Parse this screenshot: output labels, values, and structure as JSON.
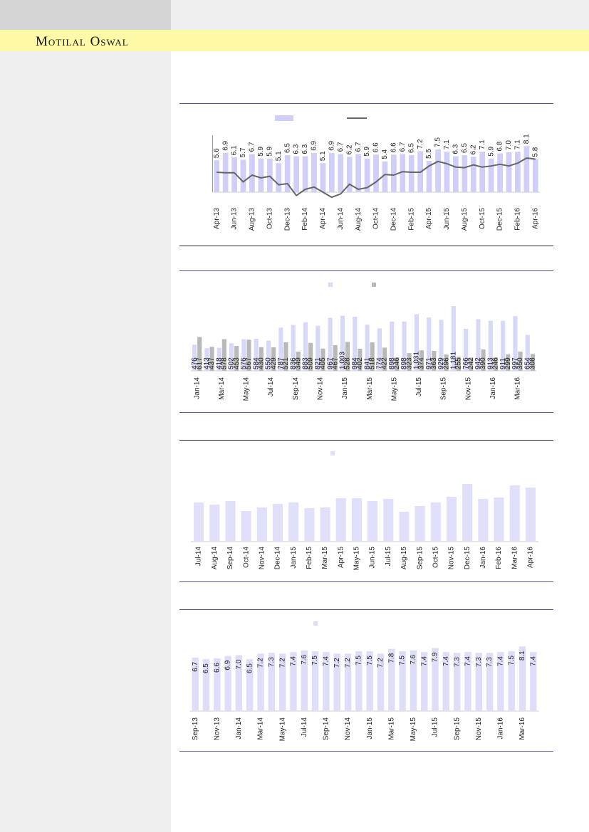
{
  "header": {
    "brand": "Motilal Oswal"
  },
  "chart_data": [
    {
      "type": "bar",
      "categories": [
        "Apr-13",
        null,
        "Jun-13",
        null,
        "Aug-13",
        null,
        "Oct-13",
        null,
        "Dec-13",
        null,
        "Feb-14",
        null,
        "Apr-14",
        null,
        "Jun-14",
        null,
        "Aug-14",
        null,
        "Oct-14",
        null,
        "Dec-14",
        null,
        "Feb-15",
        null,
        "Apr-15",
        null,
        "Jun-15",
        null,
        "Aug-15",
        null,
        "Oct-15",
        null,
        "Dec-15",
        null,
        "Feb-16",
        null,
        "Apr-16"
      ],
      "series": [
        {
          "color": "#cfcff7",
          "values": [
            5.6,
            6.9,
            6.1,
            5.7,
            6.7,
            5.9,
            5.9,
            5.1,
            6.5,
            6.3,
            6.3,
            6.9,
            5.1,
            6.9,
            6.7,
            6.2,
            6.7,
            5.9,
            6.6,
            5.4,
            6.6,
            6.7,
            6.5,
            7.2,
            5.5,
            7.5,
            7.1,
            6.3,
            6.5,
            6.2,
            7.1,
            5.9,
            6.8,
            7,
            7.1,
            8.1,
            5.8
          ],
          "value_labels": [
            "5.6",
            "6.9",
            "6.1",
            "5.7",
            "6.7",
            "5.9",
            "5.9",
            "5.1",
            "6.5",
            "6.3",
            "6.3",
            "6.9",
            "5.1",
            "6.9",
            "6.7",
            "6.2",
            "6.7",
            "5.9",
            "6.6",
            "5.4",
            "6.6",
            "6.7",
            "6.5",
            "7.2",
            "5.5",
            "7.5",
            "7.1",
            "6.3",
            "6.5",
            "6.2",
            "7.1",
            "5.9",
            "6.8",
            "7.0",
            "7.1",
            "8.1",
            "5.8"
          ]
        },
        {
          "type": "line",
          "color": "#666666",
          "values": [
            3.5,
            3.4,
            3.4,
            1.8,
            3.0,
            2.5,
            2.8,
            1.3,
            1.5,
            -0.6,
            0.5,
            0.9,
            0,
            -0.9,
            -0.3,
            1.4,
            0.5,
            0.8,
            1.8,
            3.1,
            3.0,
            3.6,
            3.5,
            3.5,
            4.6,
            5.4,
            5.0,
            4.4,
            4.3,
            4.8,
            4.4,
            4.6,
            4.9,
            4.6,
            5.1,
            6.0,
            5.8
          ]
        }
      ],
      "ylim": [
        0,
        10
      ]
    },
    {
      "type": "bar",
      "categories": [
        "Jan-14",
        null,
        "Mar-14",
        null,
        "May-14",
        null,
        "Jul-14",
        null,
        "Sep-14",
        null,
        "Nov-14",
        null,
        "Jan-15",
        null,
        "Mar-15",
        null,
        "May-15",
        null,
        "Jul-15",
        null,
        "Sep-15",
        null,
        "Nov-15",
        null,
        "Jan-16",
        null,
        "Mar-16",
        null
      ],
      "series": [
        {
          "color": "#d8d8f8",
          "values": [
            476,
            413,
            418,
            502,
            576,
            584,
            550,
            787,
            836,
            883,
            821,
            967,
            1003,
            984,
            841,
            774,
            898,
            898,
            1031,
            971,
            929,
            1181,
            766,
            942,
            913,
            911,
            997,
            654
          ],
          "value_labels": [
            "476",
            "413",
            "418",
            "502",
            "576",
            "584",
            "550",
            "787",
            "836",
            "883",
            "821",
            "967",
            "1,003",
            "984",
            "841",
            "774",
            "898",
            "898",
            "1,031",
            "971",
            "929",
            "1,181",
            "766",
            "942",
            "913",
            "911",
            "997",
            "654"
          ]
        },
        {
          "color": "#b9b9b9",
          "values": [
            617,
            437,
            578,
            453,
            567,
            430,
            429,
            521,
            349,
            509,
            405,
            467,
            528,
            402,
            518,
            422,
            246,
            323,
            374,
            363,
            296,
            255,
            242,
            390,
            246,
            299,
            350,
            308
          ],
          "value_labels": [
            "617",
            "437",
            "578",
            "453",
            "567",
            "430",
            "429",
            "521",
            "349",
            "509",
            "405",
            "467",
            "528",
            "402",
            "518",
            "422",
            "246",
            "323",
            "374",
            "363",
            "296",
            "255",
            "242",
            "390",
            "246",
            "299",
            "350",
            "308"
          ]
        }
      ],
      "ylim": [
        0,
        1200
      ]
    },
    {
      "type": "bar",
      "categories": [
        "Jul-14",
        "Aug-14",
        "Sep-14",
        "Oct-14",
        "Nov-14",
        "Dec-14",
        "Jan-15",
        "Feb-15",
        "Mar-15",
        "Apr-15",
        "May-15",
        "Jun-15",
        "Jul-15",
        "Aug-15",
        "Sep-15",
        "Oct-15",
        "Nov-15",
        "Dec-15",
        "Jan-16",
        "Feb-16",
        "Mar-16",
        "Apr-16"
      ],
      "series": [
        {
          "color": "#e0e0fb",
          "values": [
            55,
            52,
            57,
            43,
            48,
            53,
            55,
            47,
            48,
            61,
            61,
            57,
            60,
            42,
            50,
            55,
            63,
            81,
            60,
            62,
            79,
            76
          ]
        }
      ],
      "ylim": [
        0,
        100
      ]
    },
    {
      "type": "bar",
      "categories": [
        "Sep-13",
        null,
        "Nov-13",
        null,
        "Jan-14",
        null,
        "Mar-14",
        null,
        "May-14",
        null,
        "Jul-14",
        null,
        "Sep-14",
        null,
        "Nov-14",
        null,
        "Jan-15",
        null,
        "Mar-15",
        null,
        "May-15",
        null,
        "Jul-15",
        null,
        "Sep-15",
        null,
        "Nov-15",
        null,
        "Jan-16",
        null,
        "Mar-16",
        null
      ],
      "series": [
        {
          "color": "#dedef9",
          "values": [
            6.7,
            6.5,
            6.6,
            6.9,
            7,
            6.5,
            7.2,
            7.3,
            7.2,
            7.4,
            7.6,
            7.5,
            7.4,
            7.2,
            7.2,
            7.5,
            7.5,
            7.2,
            7.8,
            7.5,
            7.6,
            7.4,
            7.9,
            7.4,
            7.3,
            7.4,
            7.3,
            7.3,
            7.4,
            7.5,
            8.1,
            7.4
          ],
          "value_labels": [
            "6.7",
            "6.5",
            "6.6",
            "6.9",
            "7.0",
            "6.5",
            "7.2",
            "7.3",
            "7.2",
            "7.4",
            "7.6",
            "7.5",
            "7.4",
            "7.2",
            "7.2",
            "7.5",
            "7.5",
            "7.2",
            "7.8",
            "7.5",
            "7.6",
            "7.4",
            "7.9",
            "7.4",
            "7.3",
            "7.4",
            "7.3",
            "7.3",
            "7.4",
            "7.5",
            "8.1",
            "7.4"
          ]
        }
      ],
      "ylim": [
        0,
        10
      ]
    }
  ]
}
